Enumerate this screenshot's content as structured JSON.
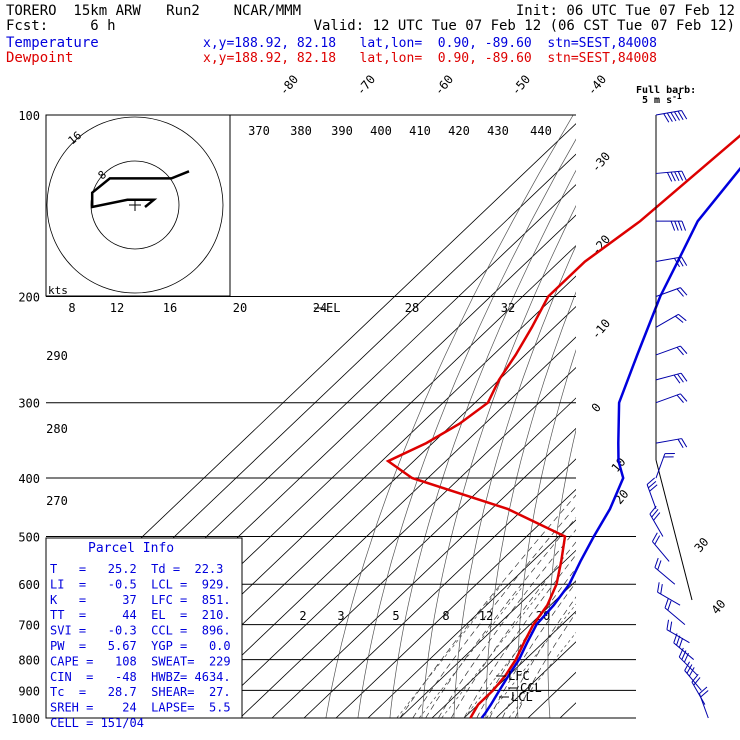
{
  "header": {
    "line1_left": "TORERO  15km ARW   Run2    NCAR/MMM",
    "line1_right": "Init: 06 UTC Tue 07 Feb 12",
    "line2_left": "Fcst:     6 h",
    "line2_right": "Valid: 12 UTC Tue 07 Feb 12 (06 CST Tue 07 Feb 12)",
    "temp_label": "Temperature",
    "temp_info": "x,y=188.92, 82.18   lat,lon=  0.90, -89.60  stn=SEST,84008",
    "dew_label": "Dewpoint",
    "dew_info": "x,y=188.92, 82.18   lat,lon=  0.90, -89.60  stn=SEST,84008",
    "barb_label_1": "Full barb:",
    "barb_label_2": "5 m s",
    "barb_label_sup": "-1",
    "colors": {
      "temperature": "#0000dd",
      "dewpoint": "#dd0000"
    }
  },
  "parcel": {
    "title": "Parcel Info",
    "rows": [
      "T   =   25.2  Td =  22.3",
      "LI  =   -0.5  LCL =  929.",
      "K   =     37  LFC =  851.",
      "TT  =     44  EL  =  210.",
      "SVI =   -0.3  CCL =  896.",
      "PW  =   5.67  YGP =   0.0",
      "CAPE =   108  SWEAT=  229",
      "CIN  =   -48  HWBZ= 4634.",
      "Tc  =   28.7  SHEAR=  27.",
      "SREH =    24  LAPSE=  5.5",
      "CELL = 151/04"
    ]
  },
  "hodograph": {
    "unit_label": "kts",
    "ring_labels": [
      "8",
      "12",
      "16",
      "20",
      "24",
      "28",
      "32"
    ],
    "ring_outer": "16",
    "ring_inner": "8",
    "path_uv": [
      [
        0,
        0
      ],
      [
        1,
        1
      ],
      [
        -2,
        1
      ],
      [
        -6,
        0
      ],
      [
        -6,
        2
      ],
      [
        -4,
        4
      ],
      [
        -1,
        4
      ],
      [
        3,
        4
      ],
      [
        5,
        5
      ]
    ]
  },
  "chart_data": {
    "type": "line",
    "title": "",
    "xlabel": "",
    "ylabel": "",
    "pressure_levels": [
      "100",
      "200",
      "300",
      "400",
      "500",
      "600",
      "700",
      "800",
      "900",
      "1000"
    ],
    "temperature_ticks": [
      "-80",
      "-70",
      "-60",
      "-50",
      "-40",
      "-30",
      "-20",
      "-10",
      "0",
      "10",
      "20",
      "30",
      "40"
    ],
    "theta_labels": [
      "370",
      "380",
      "390",
      "400",
      "410",
      "420",
      "430",
      "440",
      "290",
      "280",
      "270"
    ],
    "mixing_ratio_labels": [
      "2",
      "3",
      "5",
      "8",
      "12",
      "20"
    ],
    "annotations": [
      "EL",
      "LFC",
      "CCL",
      "LCL"
    ],
    "series": [
      {
        "name": "Temperature",
        "color": "#0000dd",
        "points": [
          [
            100,
            -78
          ],
          [
            150,
            -70
          ],
          [
            175,
            -63
          ],
          [
            200,
            -57
          ],
          [
            250,
            -45
          ],
          [
            300,
            -35
          ],
          [
            350,
            -22
          ],
          [
            375,
            -16
          ],
          [
            400,
            -9
          ],
          [
            450,
            -3
          ],
          [
            500,
            1
          ],
          [
            550,
            5
          ],
          [
            600,
            9
          ],
          [
            650,
            11
          ],
          [
            700,
            12
          ],
          [
            750,
            15
          ],
          [
            800,
            18
          ],
          [
            850,
            20
          ],
          [
            900,
            22
          ],
          [
            950,
            24
          ],
          [
            980,
            25
          ],
          [
            1000,
            25.5
          ]
        ]
      },
      {
        "name": "Dewpoint",
        "color": "#dd0000",
        "points": [
          [
            100,
            -84
          ],
          [
            150,
            -88
          ],
          [
            175,
            -92
          ],
          [
            200,
            -92
          ],
          [
            225,
            -87
          ],
          [
            250,
            -83
          ],
          [
            275,
            -80
          ],
          [
            300,
            -76
          ],
          [
            325,
            -78
          ],
          [
            350,
            -82
          ],
          [
            375,
            -88
          ],
          [
            400,
            -75
          ],
          [
            450,
            -35
          ],
          [
            500,
            -8
          ],
          [
            550,
            -1
          ],
          [
            600,
            5
          ],
          [
            650,
            9
          ],
          [
            700,
            11
          ],
          [
            750,
            14
          ],
          [
            800,
            17
          ],
          [
            850,
            19
          ],
          [
            900,
            20
          ],
          [
            950,
            20
          ],
          [
            1000,
            22
          ]
        ]
      }
    ],
    "wind_barbs": [
      {
        "p": 100,
        "spd": 30,
        "dir": 260
      },
      {
        "p": 125,
        "spd": 25,
        "dir": 265
      },
      {
        "p": 150,
        "spd": 20,
        "dir": 270
      },
      {
        "p": 175,
        "spd": 15,
        "dir": 260
      },
      {
        "p": 200,
        "spd": 10,
        "dir": 250
      },
      {
        "p": 225,
        "spd": 10,
        "dir": 240
      },
      {
        "p": 250,
        "spd": 10,
        "dir": 250
      },
      {
        "p": 275,
        "spd": 15,
        "dir": 255
      },
      {
        "p": 300,
        "spd": 10,
        "dir": 250
      },
      {
        "p": 350,
        "spd": 10,
        "dir": 260
      },
      {
        "p": 400,
        "spd": 10,
        "dir": 200
      },
      {
        "p": 450,
        "spd": 15,
        "dir": 160
      },
      {
        "p": 500,
        "spd": 15,
        "dir": 150
      },
      {
        "p": 550,
        "spd": 10,
        "dir": 140
      },
      {
        "p": 600,
        "spd": 10,
        "dir": 130
      },
      {
        "p": 650,
        "spd": 10,
        "dir": 120
      },
      {
        "p": 700,
        "spd": 10,
        "dir": 130
      },
      {
        "p": 750,
        "spd": 10,
        "dir": 120
      },
      {
        "p": 800,
        "spd": 15,
        "dir": 130
      },
      {
        "p": 850,
        "spd": 15,
        "dir": 135
      },
      {
        "p": 900,
        "spd": 15,
        "dir": 140
      },
      {
        "p": 950,
        "spd": 10,
        "dir": 150
      },
      {
        "p": 1000,
        "spd": 10,
        "dir": 160
      }
    ]
  }
}
